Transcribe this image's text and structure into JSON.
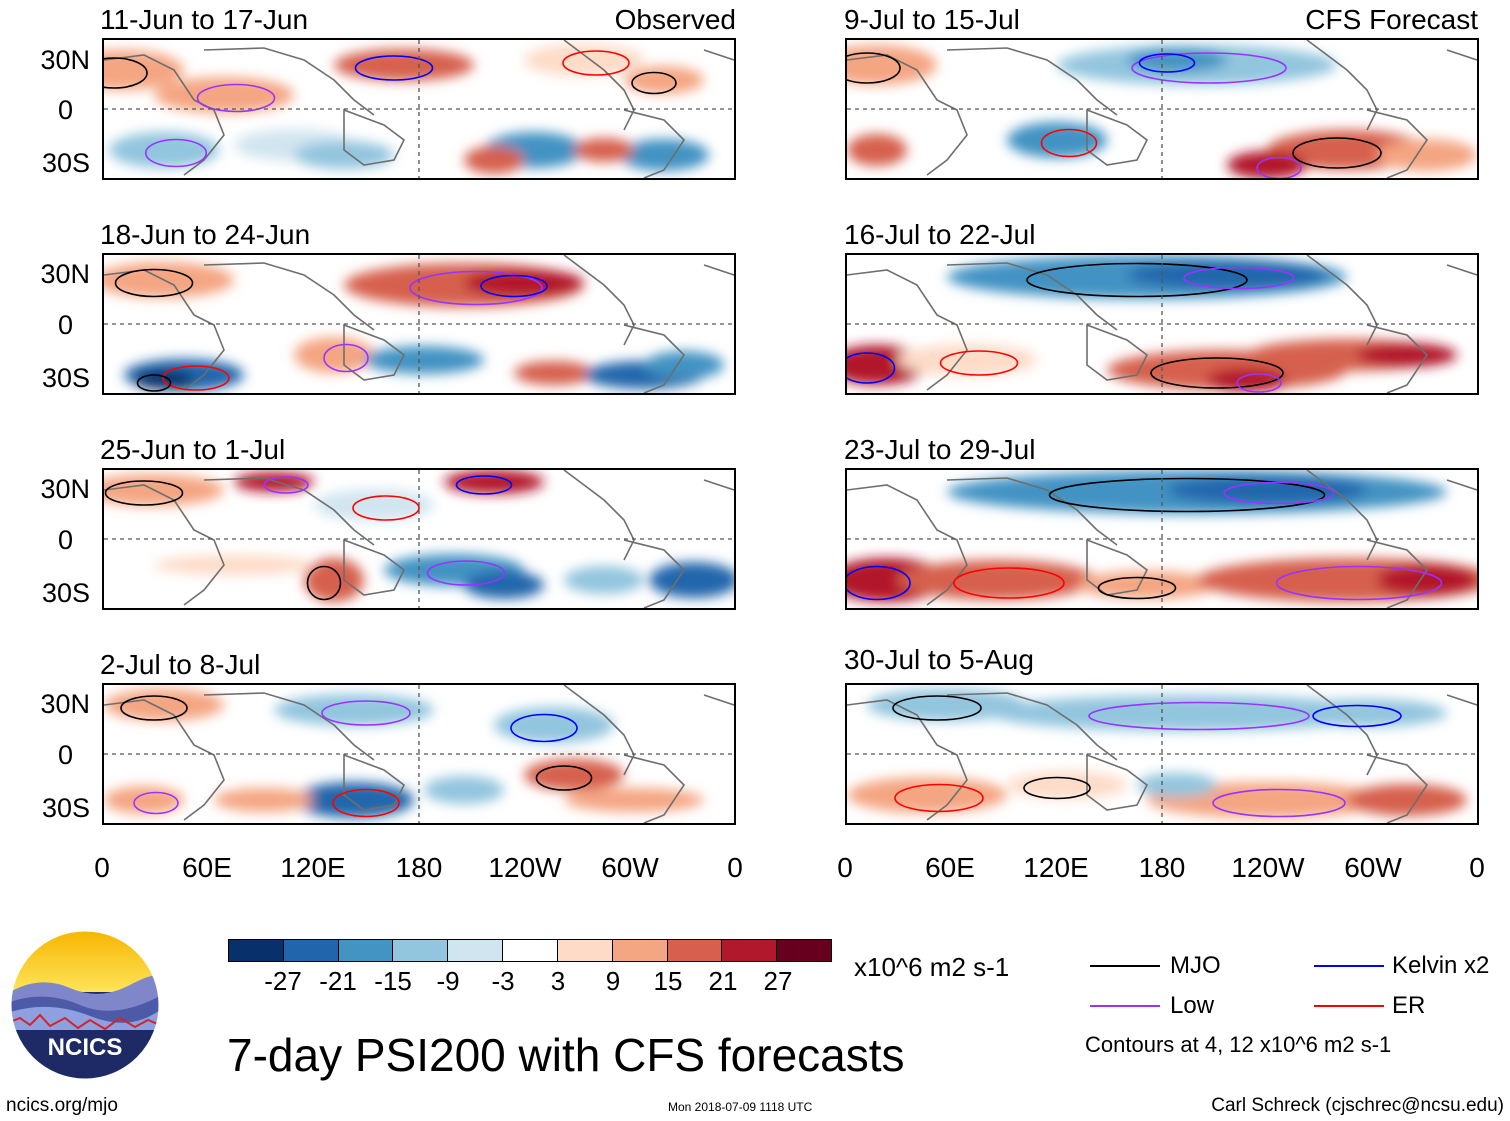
{
  "panels_left": [
    {
      "title": "11-Jun to 17-Jun",
      "tag": "Observed"
    },
    {
      "title": "18-Jun to 24-Jun",
      "tag": ""
    },
    {
      "title": "25-Jun to 1-Jul",
      "tag": ""
    },
    {
      "title": "2-Jul to 8-Jul",
      "tag": ""
    }
  ],
  "panels_right": [
    {
      "title": "9-Jul to 15-Jul",
      "tag": "CFS Forecast"
    },
    {
      "title": "16-Jul to 22-Jul",
      "tag": ""
    },
    {
      "title": "23-Jul to 29-Jul",
      "tag": ""
    },
    {
      "title": "30-Jul to 5-Aug",
      "tag": ""
    }
  ],
  "lat_labels": [
    "30N",
    "0",
    "30S"
  ],
  "lon_labels": [
    "0",
    "60E",
    "120E",
    "180",
    "120W",
    "60W",
    "0"
  ],
  "colorbar": {
    "colors": [
      "#08306b",
      "#2166ac",
      "#4393c3",
      "#92c5de",
      "#d1e5f0",
      "#ffffff",
      "#fddbc7",
      "#f4a582",
      "#d6604d",
      "#b2182b",
      "#67001f"
    ],
    "ticks": [
      "-27",
      "-21",
      "-15",
      "-9",
      "-3",
      "3",
      "9",
      "15",
      "21",
      "27"
    ],
    "units": "x10^6 m2 s-1"
  },
  "legend": {
    "mjo": "MJO",
    "low": "Low",
    "kelvin": "Kelvin x2",
    "er": "ER",
    "colors": {
      "mjo": "#000000",
      "low": "#9933ff",
      "kelvin": "#0000ff",
      "er": "#ff0000"
    },
    "note": "Contours at 4, 12 x10^6 m2 s-1"
  },
  "title": "7-day PSI200 with CFS forecasts",
  "logo_text": "NCICS",
  "footer": {
    "left": "ncics.org/mjo",
    "center": "Mon 2018-07-09 1118 UTC",
    "right": "Carl Schreck (cjschrec@ncsu.edu)"
  }
}
